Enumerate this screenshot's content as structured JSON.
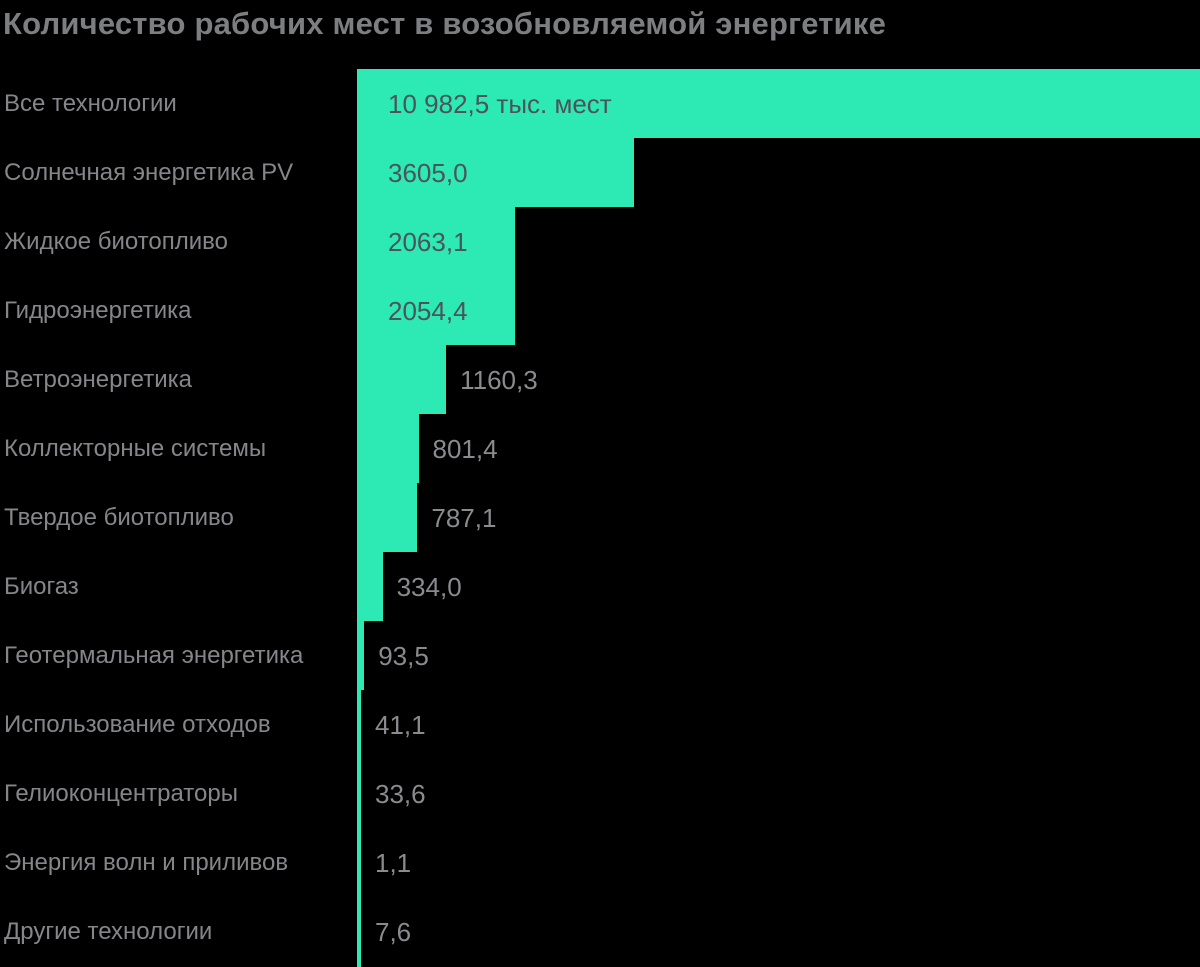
{
  "title": "Количество рабочих мест в возобновляемой энергетике",
  "colors": {
    "background": "#000000",
    "bar": "#2de9b3",
    "title_text": "#7d7e81",
    "category_text": "#85868a",
    "value_text_inside_bar": "#4b545c",
    "value_text_outside_bar": "#8a8b8e"
  },
  "chart_data": {
    "type": "bar",
    "orientation": "horizontal",
    "title": "Количество рабочих мест в возобновляемой энергетике",
    "unit": "тыс. мест",
    "xlim": [
      0,
      10982.5
    ],
    "grid": false,
    "legend": "none",
    "categories": [
      "Все технологии",
      "Солнечная энергетика PV",
      "Жидкое биотопливо",
      "Гидроэнергетика",
      "Ветроэнергетика",
      "Коллекторные системы",
      "Твердое биотопливо",
      "Биогаз",
      "Геотермальная энергетика",
      "Использование отходов",
      "Гелиоконцентраторы",
      "Энергия волн и приливов",
      "Другие технологии"
    ],
    "values": [
      10982.5,
      3605.0,
      2063.1,
      2054.4,
      1160.3,
      801.4,
      787.1,
      334.0,
      93.5,
      41.1,
      33.6,
      1.1,
      7.6
    ],
    "value_labels": [
      "10 982,5 тыс. мест",
      "3605,0",
      "2063,1",
      "2054,4",
      "1160,3",
      "801,4",
      "787,1",
      "334,0",
      "93,5",
      "41,1",
      "33,6",
      "1,1",
      "7,6"
    ]
  }
}
